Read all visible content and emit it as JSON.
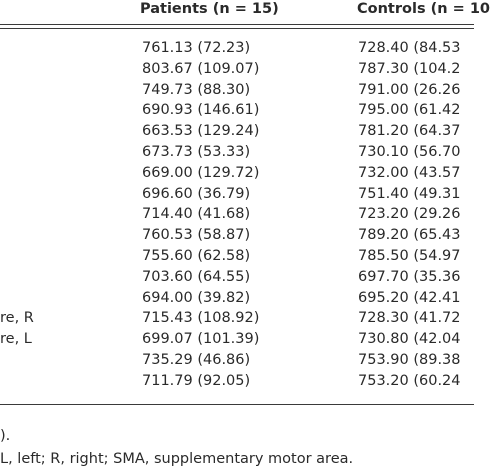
{
  "header": {
    "patients": "Patients (n = 15)",
    "controls": "Controls (n = 10"
  },
  "rows": [
    {
      "label": "",
      "patients": "761.13 (72.23)",
      "controls": "728.40 (84.53"
    },
    {
      "label": "",
      "patients": "803.67 (109.07)",
      "controls": "787.30 (104.2"
    },
    {
      "label": "",
      "patients": "749.73 (88.30)",
      "controls": "791.00 (26.26"
    },
    {
      "label": "",
      "patients": "690.93 (146.61)",
      "controls": "795.00 (61.42"
    },
    {
      "label": "",
      "patients": "663.53 (129.24)",
      "controls": "781.20 (64.37"
    },
    {
      "label": "",
      "patients": "673.73 (53.33)",
      "controls": "730.10 (56.70"
    },
    {
      "label": "",
      "patients": "669.00 (129.72)",
      "controls": "732.00 (43.57"
    },
    {
      "label": "",
      "patients": "696.60 (36.79)",
      "controls": "751.40 (49.31"
    },
    {
      "label": "",
      "patients": "714.40 (41.68)",
      "controls": "723.20 (29.26"
    },
    {
      "label": "",
      "patients": "760.53 (58.87)",
      "controls": "789.20 (65.43"
    },
    {
      "label": "",
      "patients": "755.60 (62.58)",
      "controls": "785.50 (54.97"
    },
    {
      "label": "",
      "patients": "703.60 (64.55)",
      "controls": "697.70 (35.36"
    },
    {
      "label": "",
      "patients": "694.00 (39.82)",
      "controls": "695.20 (42.41"
    },
    {
      "label": "re, R",
      "patients": "715.43 (108.92)",
      "controls": "728.30 (41.72"
    },
    {
      "label": "re, L",
      "patients": "699.07 (101.39)",
      "controls": "730.80 (42.04"
    },
    {
      "label": "",
      "patients": "735.29 (46.86)",
      "controls": "753.90 (89.38"
    },
    {
      "label": "",
      "patients": "711.79 (92.05)",
      "controls": "753.20 (60.24"
    }
  ],
  "footnotes": {
    "line1": ").",
    "line2": "L, left; R, right; SMA, supplementary motor area."
  }
}
